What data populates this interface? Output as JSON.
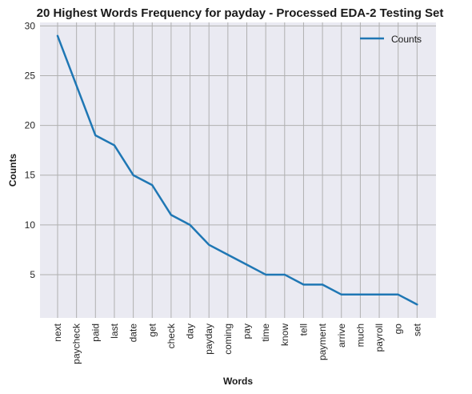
{
  "chart_data": {
    "type": "line",
    "title": "20 Highest Words Frequency for payday - Processed EDA-2 Testing Set",
    "xlabel": "Words",
    "ylabel": "Counts",
    "categories": [
      "next",
      "paycheck",
      "paid",
      "last",
      "date",
      "get",
      "check",
      "day",
      "payday",
      "coming",
      "pay",
      "time",
      "know",
      "tell",
      "payment",
      "arrive",
      "much",
      "payroll",
      "go",
      "set"
    ],
    "series": [
      {
        "name": "Counts",
        "values": [
          29,
          24,
          19,
          18,
          15,
          14,
          11,
          10,
          8,
          7,
          6,
          5,
          5,
          4,
          4,
          3,
          3,
          3,
          3,
          2
        ],
        "color": "#1f77b4"
      }
    ],
    "ylim": [
      0.65,
      30.35
    ],
    "yticks": [
      5,
      10,
      15,
      20,
      25,
      30
    ],
    "grid": true,
    "legend_position": "top-right",
    "background": "#eaeaf2",
    "grid_color": "#b0b0b0"
  }
}
